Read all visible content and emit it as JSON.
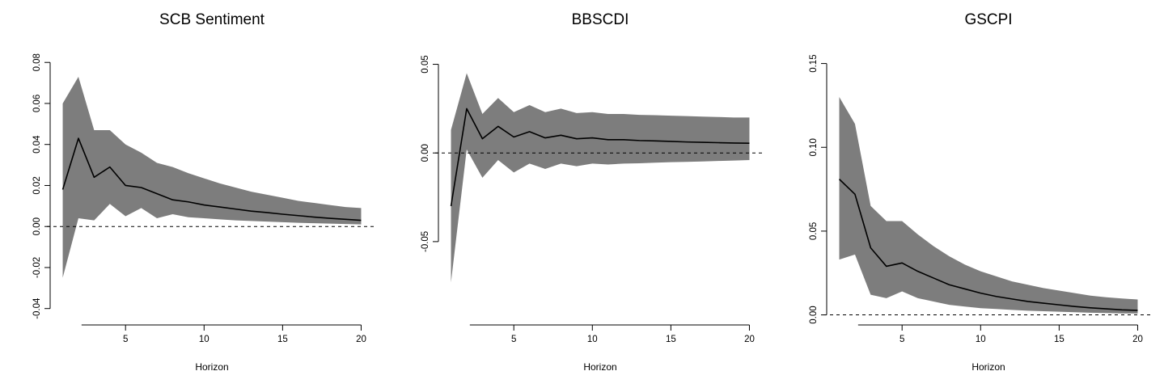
{
  "figure": {
    "background": "#ffffff",
    "band_color": "#7d7d7d",
    "line_color": "#000000",
    "zero_line_color": "#000000",
    "zero_line_style": "dashed"
  },
  "chart_data": [
    {
      "type": "area",
      "title": "SCB Sentiment",
      "xlabel": "Horizon",
      "ylabel": "",
      "x": [
        1,
        2,
        3,
        4,
        5,
        6,
        7,
        8,
        9,
        10,
        11,
        12,
        13,
        14,
        15,
        16,
        17,
        18,
        19,
        20
      ],
      "series": [
        {
          "name": "irf_mean",
          "values": [
            0.018,
            0.043,
            0.024,
            0.029,
            0.02,
            0.019,
            0.016,
            0.013,
            0.012,
            0.0105,
            0.0095,
            0.0085,
            0.0075,
            0.0068,
            0.006,
            0.0053,
            0.0046,
            0.004,
            0.0035,
            0.003
          ]
        },
        {
          "name": "ci_upper",
          "values": [
            0.06,
            0.073,
            0.047,
            0.047,
            0.04,
            0.036,
            0.031,
            0.029,
            0.026,
            0.0235,
            0.021,
            0.019,
            0.017,
            0.0155,
            0.014,
            0.0125,
            0.0115,
            0.0105,
            0.0095,
            0.009
          ]
        },
        {
          "name": "ci_lower",
          "values": [
            -0.025,
            0.004,
            0.003,
            0.011,
            0.005,
            0.009,
            0.004,
            0.006,
            0.0045,
            0.004,
            0.0035,
            0.003,
            0.0027,
            0.0024,
            0.0021,
            0.0018,
            0.0016,
            0.0014,
            0.0012,
            0.001
          ]
        }
      ],
      "xticks": [
        5,
        10,
        15,
        20
      ],
      "yticks": [
        -0.04,
        -0.02,
        0,
        0.02,
        0.04,
        0.06,
        0.08
      ],
      "ytick_labels": [
        "-0.04",
        "-0.02",
        "0.00",
        "0.02",
        "0.04",
        "0.06",
        "0.08"
      ],
      "xlim": [
        0.2,
        20.8
      ],
      "ylim": [
        -0.048,
        0.086
      ],
      "zero_line": 0,
      "grid": false,
      "legend": null
    },
    {
      "type": "area",
      "title": "BBSCDI",
      "xlabel": "Horizon",
      "ylabel": "",
      "x": [
        1,
        2,
        3,
        4,
        5,
        6,
        7,
        8,
        9,
        10,
        11,
        12,
        13,
        14,
        15,
        16,
        17,
        18,
        19,
        20
      ],
      "series": [
        {
          "name": "irf_mean",
          "values": [
            -0.03,
            0.025,
            0.008,
            0.015,
            0.009,
            0.012,
            0.0085,
            0.01,
            0.008,
            0.0085,
            0.0075,
            0.0075,
            0.007,
            0.0068,
            0.0065,
            0.0062,
            0.006,
            0.0058,
            0.0056,
            0.0055
          ]
        },
        {
          "name": "ci_upper",
          "values": [
            0.013,
            0.045,
            0.022,
            0.031,
            0.023,
            0.027,
            0.023,
            0.025,
            0.0225,
            0.023,
            0.022,
            0.022,
            0.0215,
            0.0213,
            0.021,
            0.0208,
            0.0205,
            0.0203,
            0.02,
            0.02
          ]
        },
        {
          "name": "ci_lower",
          "values": [
            -0.073,
            0.002,
            -0.014,
            -0.004,
            -0.011,
            -0.006,
            -0.009,
            -0.006,
            -0.0075,
            -0.006,
            -0.0065,
            -0.006,
            -0.0058,
            -0.0055,
            -0.0052,
            -0.005,
            -0.0048,
            -0.0045,
            -0.0043,
            -0.004
          ]
        }
      ],
      "xticks": [
        5,
        10,
        15,
        20
      ],
      "yticks": [
        -0.05,
        0,
        0.05
      ],
      "ytick_labels": [
        "-0.05",
        "0.00",
        "0.05"
      ],
      "xlim": [
        0.2,
        20.8
      ],
      "ylim": [
        -0.097,
        0.058
      ],
      "zero_line": 0,
      "grid": false,
      "legend": null
    },
    {
      "type": "area",
      "title": "GSCPI",
      "xlabel": "Horizon",
      "ylabel": "",
      "x": [
        1,
        2,
        3,
        4,
        5,
        6,
        7,
        8,
        9,
        10,
        11,
        12,
        13,
        14,
        15,
        16,
        17,
        18,
        19,
        20
      ],
      "series": [
        {
          "name": "irf_mean",
          "values": [
            0.081,
            0.072,
            0.04,
            0.029,
            0.031,
            0.026,
            0.022,
            0.018,
            0.0155,
            0.013,
            0.011,
            0.0095,
            0.008,
            0.007,
            0.006,
            0.005,
            0.0042,
            0.0036,
            0.003,
            0.0027
          ]
        },
        {
          "name": "ci_upper",
          "values": [
            0.13,
            0.114,
            0.065,
            0.056,
            0.056,
            0.048,
            0.041,
            0.035,
            0.03,
            0.026,
            0.023,
            0.02,
            0.018,
            0.016,
            0.0145,
            0.013,
            0.0115,
            0.0105,
            0.0098,
            0.0092
          ]
        },
        {
          "name": "ci_lower",
          "values": [
            0.033,
            0.036,
            0.012,
            0.01,
            0.014,
            0.01,
            0.008,
            0.006,
            0.005,
            0.004,
            0.0035,
            0.003,
            0.0025,
            0.0022,
            0.0019,
            0.0016,
            0.0013,
            0.0011,
            0.0009,
            0.0008
          ]
        }
      ],
      "xticks": [
        5,
        10,
        15,
        20
      ],
      "yticks": [
        0,
        0.05,
        0.1,
        0.15
      ],
      "ytick_labels": [
        "0.00",
        "0.05",
        "0.10",
        "0.15"
      ],
      "xlim": [
        0.2,
        20.8
      ],
      "ylim": [
        -0.006,
        0.158
      ],
      "zero_line": 0,
      "grid": false,
      "legend": null
    }
  ]
}
